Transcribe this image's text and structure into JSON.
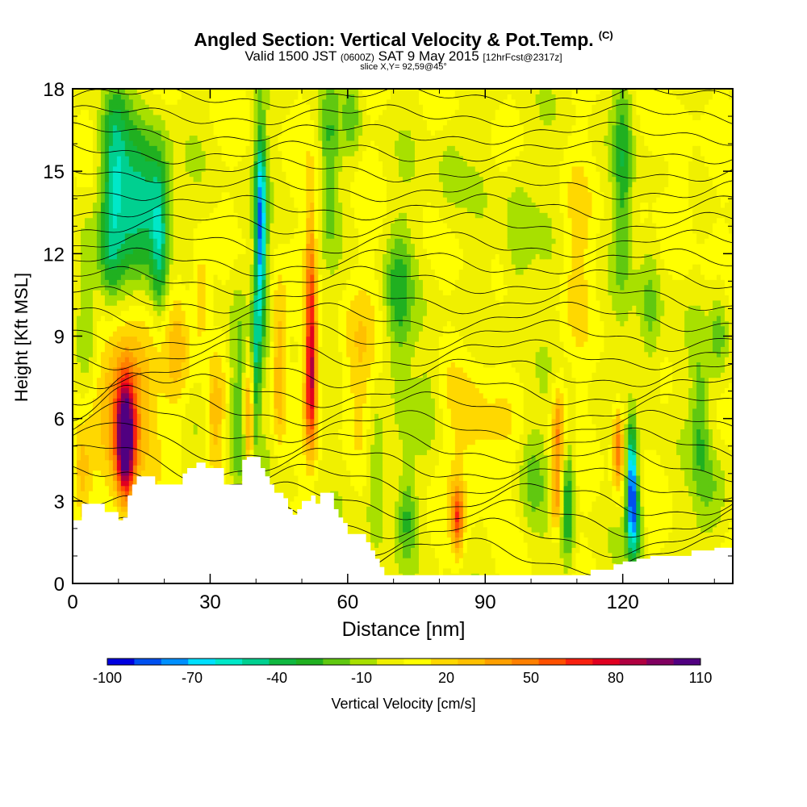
{
  "header": {
    "title": "Angled Section: Vertical Velocity & Pot.Temp.",
    "title_mark": "(C)",
    "valid_prefix": "Valid 1500 JST",
    "valid_utc": "(0600Z)",
    "valid_date": "SAT 9 May 2015",
    "forecast": "[12hrFcst@2317z]",
    "slice": "slice X,Y= 92,59@45°"
  },
  "chart_data": {
    "type": "heatmap",
    "xlabel": "Distance [nm]",
    "ylabel": "Height [Kft MSL]",
    "xlim": [
      0,
      144
    ],
    "ylim": [
      0,
      18
    ],
    "x_ticks": [
      "0",
      "30",
      "60",
      "90",
      "120"
    ],
    "y_ticks": [
      "0",
      "3",
      "6",
      "9",
      "12",
      "15",
      "18"
    ],
    "colorbar": {
      "label": "Vertical Velocity [cm/s]",
      "tick_labels": [
        "-100",
        "-70",
        "-40",
        "-10",
        "20",
        "50",
        "80",
        "110"
      ],
      "levels": [
        -100,
        -90,
        -80,
        -70,
        -60,
        -50,
        -40,
        -30,
        -20,
        -10,
        0,
        10,
        20,
        30,
        40,
        50,
        60,
        70,
        80,
        90,
        100,
        110
      ],
      "colors": [
        "#0000e0",
        "#0050f0",
        "#0090ff",
        "#00e0ff",
        "#00e8c8",
        "#00d090",
        "#10b840",
        "#20b020",
        "#60c810",
        "#a8e000",
        "#f0f000",
        "#ffff00",
        "#ffd800",
        "#ffc000",
        "#ffa000",
        "#ff8000",
        "#ff5000",
        "#f82010",
        "#e00020",
        "#b00040",
        "#800060",
        "#500080"
      ]
    },
    "terrain": [
      [
        0,
        2.3
      ],
      [
        2,
        2.9
      ],
      [
        6,
        2.9
      ],
      [
        7,
        2.6
      ],
      [
        9,
        2.6
      ],
      [
        10,
        2.3
      ],
      [
        11,
        2.4
      ],
      [
        12,
        3.2
      ],
      [
        13,
        3.6
      ],
      [
        14,
        3.9
      ],
      [
        16,
        3.9
      ],
      [
        17,
        3.9
      ],
      [
        18,
        3.6
      ],
      [
        23,
        3.6
      ],
      [
        24,
        4.0
      ],
      [
        25,
        4.2
      ],
      [
        27,
        4.4
      ],
      [
        29,
        4.2
      ],
      [
        31,
        4.2
      ],
      [
        33,
        3.6
      ],
      [
        35,
        3.6
      ],
      [
        37,
        4.5
      ],
      [
        38,
        4.6
      ],
      [
        40,
        4.6
      ],
      [
        41,
        4.2
      ],
      [
        42,
        3.9
      ],
      [
        43,
        3.6
      ],
      [
        44,
        3.3
      ],
      [
        45,
        3.3
      ],
      [
        46,
        3.1
      ],
      [
        47,
        2.7
      ],
      [
        48,
        2.5
      ],
      [
        49,
        2.7
      ],
      [
        50,
        3.0
      ],
      [
        52,
        3.2
      ],
      [
        53,
        2.9
      ],
      [
        54,
        3.3
      ],
      [
        56,
        3.3
      ],
      [
        57,
        2.7
      ],
      [
        58,
        2.4
      ],
      [
        59,
        2.2
      ],
      [
        60,
        1.8
      ],
      [
        64,
        1.5
      ],
      [
        65,
        1.2
      ],
      [
        66,
        0.9
      ],
      [
        67,
        0.6
      ],
      [
        68,
        0.3
      ],
      [
        112,
        0.3
      ],
      [
        113,
        0.5
      ],
      [
        116,
        0.5
      ],
      [
        118,
        0.7
      ],
      [
        120,
        0.8
      ],
      [
        123,
        0.9
      ],
      [
        126,
        1.0
      ],
      [
        130,
        1.0
      ],
      [
        135,
        1.2
      ],
      [
        140,
        1.3
      ],
      [
        144,
        1.3
      ]
    ],
    "cells": [
      {
        "x": 11.5,
        "y": 5.2,
        "sx": 1.8,
        "sy": 1.9,
        "v": 100
      },
      {
        "x": 11.5,
        "y": 5.5,
        "sx": 4.5,
        "sy": 3.0,
        "v": 45
      },
      {
        "x": 12,
        "y": 7.5,
        "sx": 6,
        "sy": 2,
        "v": 25
      },
      {
        "x": 52,
        "y": 7.5,
        "sx": 1.2,
        "sy": 2.6,
        "v": 80
      },
      {
        "x": 52,
        "y": 11.5,
        "sx": 1.2,
        "sy": 3,
        "v": 40
      },
      {
        "x": 41,
        "y": 13,
        "sx": 1.2,
        "sy": 3.5,
        "v": -85
      },
      {
        "x": 40,
        "y": 8,
        "sx": 1.0,
        "sy": 3,
        "v": -40
      },
      {
        "x": 38.5,
        "y": 5.8,
        "sx": 1.0,
        "sy": 2,
        "v": 45
      },
      {
        "x": 45,
        "y": 8,
        "sx": 1.5,
        "sy": 3,
        "v": 35
      },
      {
        "x": 28,
        "y": 10.5,
        "sx": 2,
        "sy": 2,
        "v": 25
      },
      {
        "x": 15,
        "y": 14,
        "sx": 5,
        "sy": 2.5,
        "v": -55
      },
      {
        "x": 9,
        "y": 15.5,
        "sx": 3,
        "sy": 2.5,
        "v": -45
      },
      {
        "x": 8,
        "y": 12,
        "sx": 3,
        "sy": 2,
        "v": -35
      },
      {
        "x": 19,
        "y": 12.5,
        "sx": 2,
        "sy": 3,
        "v": -45
      },
      {
        "x": 23,
        "y": 8.5,
        "sx": 3,
        "sy": 2.5,
        "v": 25
      },
      {
        "x": 36,
        "y": 6.5,
        "sx": 2,
        "sy": 4.5,
        "v": -30
      },
      {
        "x": 56,
        "y": 15.5,
        "sx": 2,
        "sy": 3,
        "v": -25
      },
      {
        "x": 61,
        "y": 17,
        "sx": 2,
        "sy": 1.5,
        "v": -20
      },
      {
        "x": 66,
        "y": 4,
        "sx": 2,
        "sy": 3,
        "v": -25
      },
      {
        "x": 73,
        "y": 2.5,
        "sx": 2,
        "sy": 1.5,
        "v": -25
      },
      {
        "x": 71,
        "y": 10.5,
        "sx": 3,
        "sy": 2.5,
        "v": -30
      },
      {
        "x": 84,
        "y": 2.4,
        "sx": 1.3,
        "sy": 1.3,
        "v": 55
      },
      {
        "x": 86,
        "y": 6,
        "sx": 5,
        "sy": 3,
        "v": 15
      },
      {
        "x": 90,
        "y": 5,
        "sx": 6,
        "sy": 2,
        "v": 10
      },
      {
        "x": 106,
        "y": 5.5,
        "sx": 1.5,
        "sy": 1.8,
        "v": 45
      },
      {
        "x": 105.5,
        "y": 3,
        "sx": 1.2,
        "sy": 1.2,
        "v": 45
      },
      {
        "x": 108,
        "y": 3,
        "sx": 1.5,
        "sy": 2.5,
        "v": -40
      },
      {
        "x": 119,
        "y": 5,
        "sx": 1.2,
        "sy": 1.5,
        "v": 55
      },
      {
        "x": 122,
        "y": 3.8,
        "sx": 1.0,
        "sy": 1.8,
        "v": -85
      },
      {
        "x": 122.5,
        "y": 2.2,
        "sx": 1.6,
        "sy": 1.5,
        "v": -55
      },
      {
        "x": 126,
        "y": 10,
        "sx": 2.5,
        "sy": 3,
        "v": -25
      },
      {
        "x": 120,
        "y": 15,
        "sx": 2,
        "sy": 4,
        "v": -30
      },
      {
        "x": 137,
        "y": 6,
        "sx": 2,
        "sy": 3,
        "v": -25
      },
      {
        "x": 141,
        "y": 9,
        "sx": 2,
        "sy": 2,
        "v": -25
      },
      {
        "x": 97,
        "y": 12.5,
        "sx": 3,
        "sy": 3,
        "v": -20
      },
      {
        "x": 82,
        "y": 15,
        "sx": 3,
        "sy": 2,
        "v": -15
      },
      {
        "x": 100,
        "y": 4,
        "sx": 3,
        "sy": 2,
        "v": -20
      },
      {
        "x": 2,
        "y": 4,
        "sx": 2,
        "sy": 1.5,
        "v": 25
      },
      {
        "x": 3,
        "y": 10,
        "sx": 2,
        "sy": 3,
        "v": -25
      },
      {
        "x": 133,
        "y": 14,
        "sx": 3,
        "sy": 3,
        "v": 15
      },
      {
        "x": 110,
        "y": 12,
        "sx": 3,
        "sy": 3,
        "v": 15
      },
      {
        "x": 62,
        "y": 8,
        "sx": 4,
        "sy": 3,
        "v": 20
      },
      {
        "x": 78,
        "y": 7,
        "sx": 3,
        "sy": 3,
        "v": -15
      },
      {
        "x": 140,
        "y": 3,
        "sx": 3,
        "sy": 2,
        "v": -20
      },
      {
        "x": 31,
        "y": 6,
        "sx": 2,
        "sy": 2,
        "v": 30
      }
    ],
    "contours": {
      "top": 17.7,
      "bottom": 1.0,
      "count": 26
    }
  }
}
